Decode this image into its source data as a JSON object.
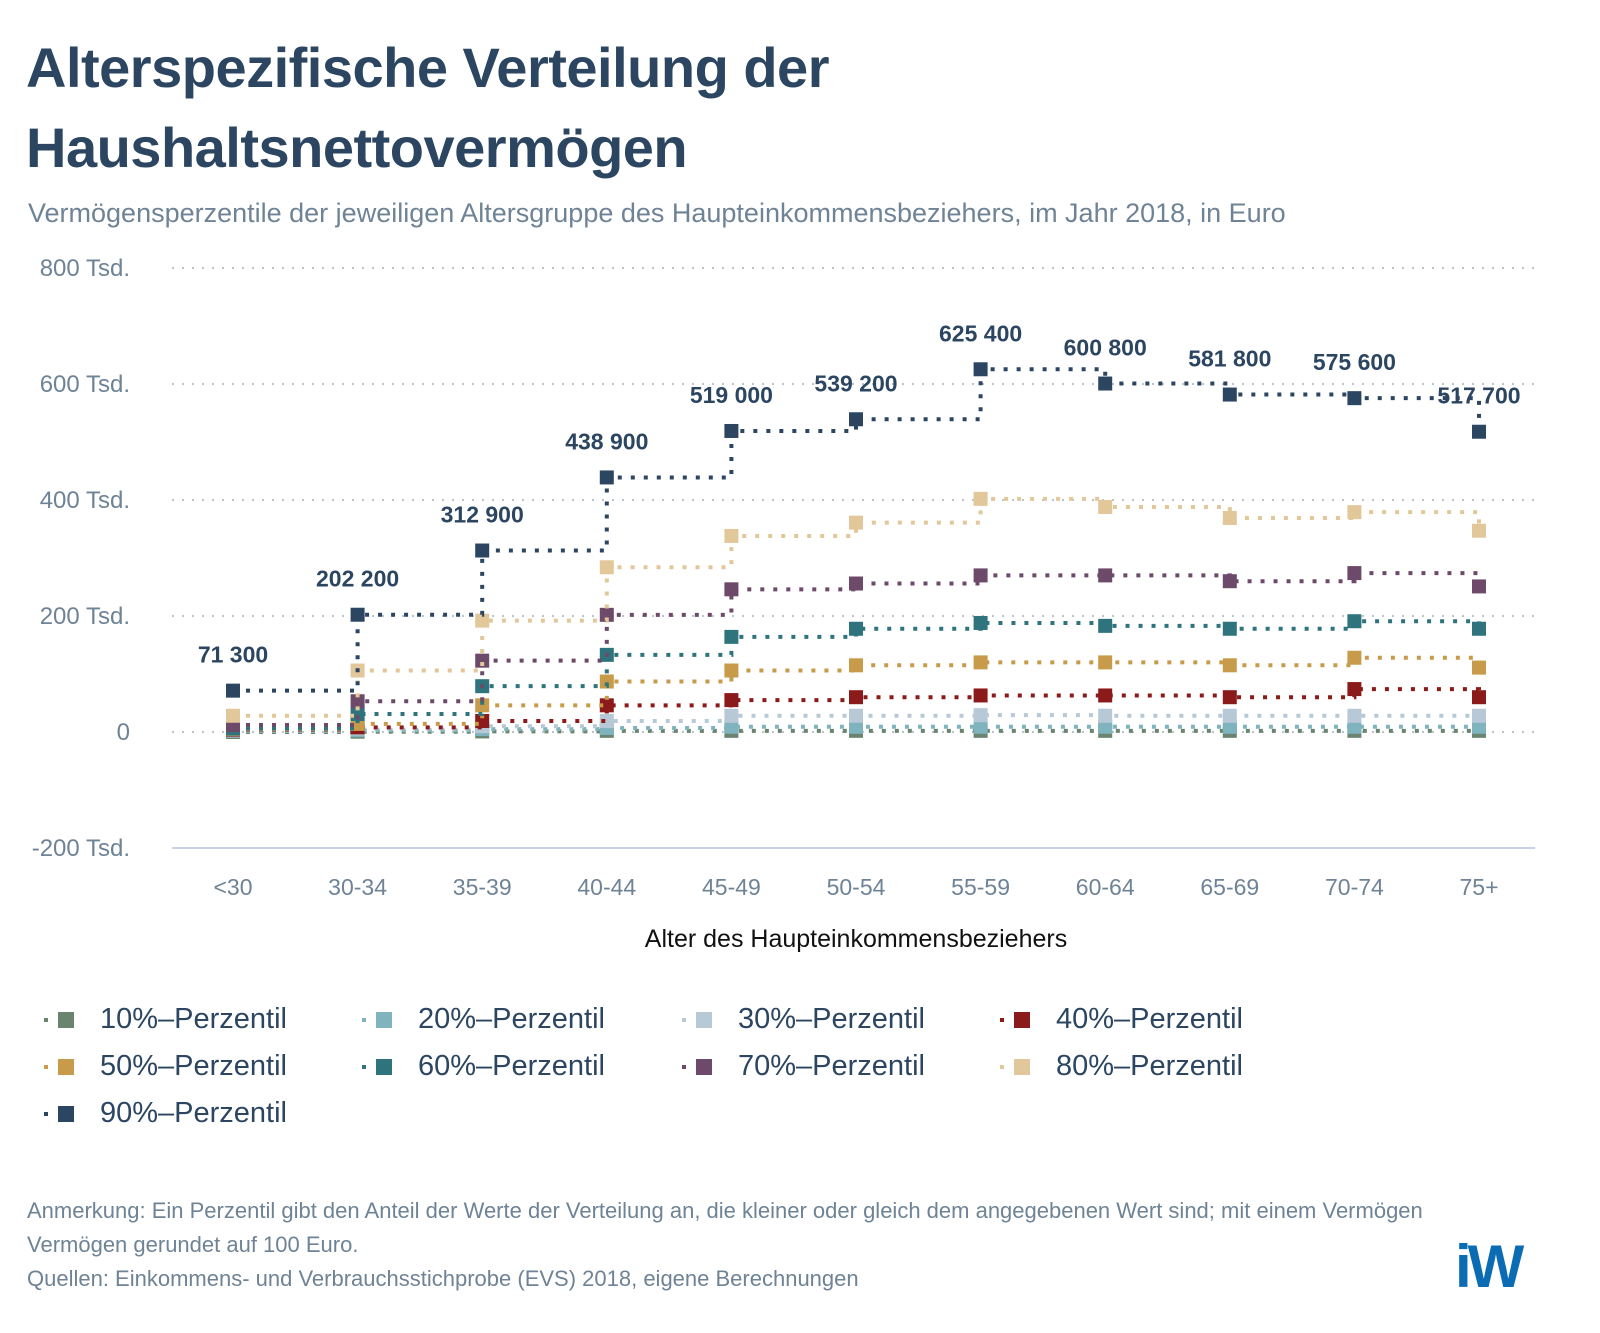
{
  "title_line1": "Alterspezifische Verteilung der",
  "title_line2": "Haushaltsnettovermögen",
  "subtitle": "Vermögensperzentile der jeweiligen Altersgruppe des Haupteinkommensbeziehers, im Jahr 2018, in Euro",
  "chart_data": {
    "type": "line",
    "step": "after",
    "xlabel": "Alter des Haupteinkommensbeziehers",
    "ylabel": "",
    "ylim": [
      -200000,
      800000
    ],
    "yticks": [
      -200000,
      0,
      200000,
      400000,
      600000,
      800000
    ],
    "ytick_labels": [
      "-200 Tsd.",
      "0",
      "200 Tsd.",
      "400 Tsd.",
      "600 Tsd.",
      "800 Tsd."
    ],
    "categories": [
      "<30",
      "30-34",
      "35-39",
      "40-44",
      "45-49",
      "50-54",
      "55-59",
      "60-64",
      "65-69",
      "70-74",
      "75+"
    ],
    "grid": true,
    "legend_position": "bottom",
    "series": [
      {
        "name": "10%–Perzentil",
        "color": "#6b8470",
        "values": [
          0,
          500,
          1000,
          2000,
          2000,
          2000,
          2000,
          2000,
          2000,
          2000,
          2000
        ]
      },
      {
        "name": "20%–Perzentil",
        "color": "#7fb3bd",
        "values": [
          2000,
          3000,
          5000,
          7000,
          9000,
          9000,
          9000,
          9000,
          9000,
          9000,
          9000
        ]
      },
      {
        "name": "30%–Perzentil",
        "color": "#b7c9d6",
        "values": [
          3000,
          6000,
          10000,
          19000,
          28000,
          28000,
          29000,
          28000,
          28000,
          28000,
          28000
        ]
      },
      {
        "name": "40%–Perzentil",
        "color": "#8b1a1a",
        "values": [
          4000,
          8000,
          19000,
          46000,
          55000,
          60000,
          63000,
          63000,
          60000,
          74000,
          60000
        ]
      },
      {
        "name": "50%–Perzentil",
        "color": "#c89b4a",
        "values": [
          5000,
          14000,
          46000,
          87000,
          106000,
          115000,
          120000,
          120000,
          115000,
          128000,
          111000
        ]
      },
      {
        "name": "60%–Perzentil",
        "color": "#2f737c",
        "values": [
          6000,
          31000,
          79000,
          133000,
          164000,
          178000,
          188000,
          183000,
          178000,
          191000,
          178000
        ]
      },
      {
        "name": "70%–Perzentil",
        "color": "#6d4a6a",
        "values": [
          12000,
          53000,
          123000,
          202000,
          246000,
          256000,
          270000,
          270000,
          260000,
          274000,
          251000
        ]
      },
      {
        "name": "80%–Perzentil",
        "color": "#e2c79a",
        "values": [
          28000,
          106000,
          192000,
          284000,
          338000,
          361000,
          402000,
          388000,
          369000,
          379000,
          347000
        ]
      },
      {
        "name": "90%–Perzentil",
        "color": "#2c4662",
        "values": [
          71300,
          202200,
          312900,
          438900,
          519000,
          539200,
          625400,
          600800,
          581800,
          575600,
          517700
        ],
        "data_labels": [
          "71 300",
          "202 200",
          "312 900",
          "438 900",
          "519 000",
          "539 200",
          "625 400",
          "600 800",
          "581 800",
          "575 600",
          "517 700"
        ]
      }
    ]
  },
  "note_line1": "Anmerkung: Ein Perzentil gibt den Anteil der Werte der Verteilung an, die kleiner oder gleich dem angegebenen Wert sind; mit einem Vermögen",
  "note_line2": "Vermögen gerundet auf 100 Euro.",
  "source": "Quellen: Einkommens- und Verbrauchsstichprobe (EVS) 2018, eigene Berechnungen",
  "logo_text": "iW"
}
